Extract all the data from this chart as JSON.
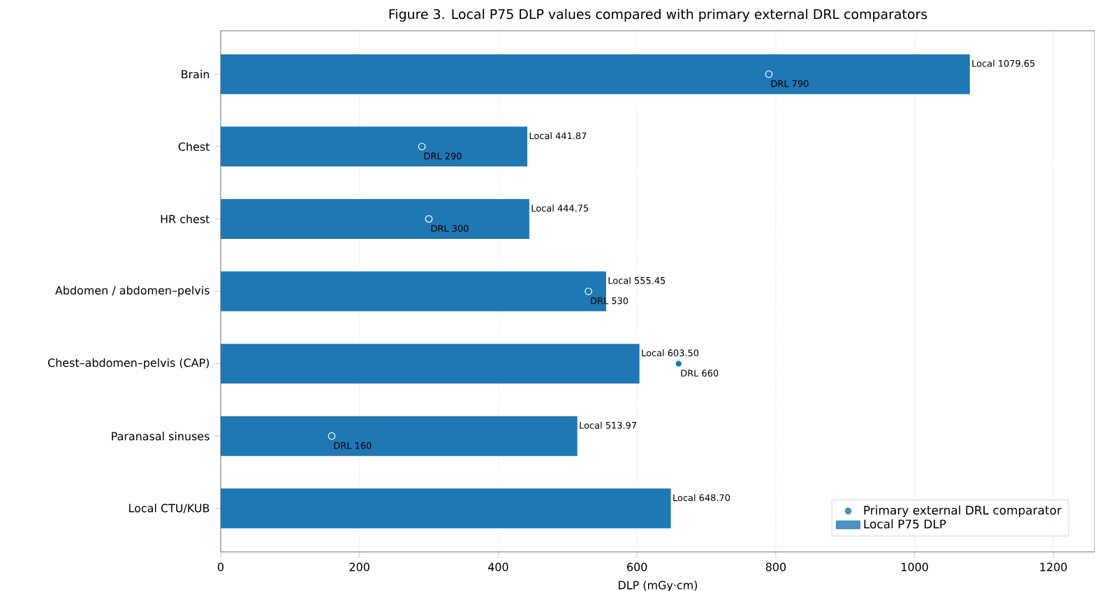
{
  "chart_data": {
    "type": "bar",
    "orientation": "horizontal",
    "title": "Figure 3. Local P75 DLP values compared with primary external DRL comparators",
    "xlabel": "DLP (mGy·cm)",
    "categories": [
      "Brain",
      "Chest",
      "HR chest",
      "Abdomen / abdomen–pelvis",
      "Chest–abdomen–pelvis (CAP)",
      "Paranasal sinuses",
      "Local CTU/KUB"
    ],
    "series": [
      {
        "name": "Primary external DRL comparator",
        "type": "scatter",
        "color": "#1f77b4",
        "values": [
          790,
          290,
          300,
          530,
          660,
          160,
          null
        ],
        "value_labels": [
          "DRL 790",
          "DRL 290",
          "DRL 300",
          "DRL 530",
          "DRL 660",
          "DRL 160",
          null
        ]
      },
      {
        "name": "Local P75 DLP",
        "color": "#1f77b4",
        "values": [
          1079.65,
          441.87,
          444.75,
          555.45,
          603.5,
          513.97,
          648.7
        ],
        "value_labels": [
          "Local 1079.65",
          "Local 441.87",
          "Local 444.75",
          "Local 555.45",
          "Local 603.50",
          "Local 513.97",
          "Local 648.70"
        ]
      }
    ],
    "xlim": [
      0,
      1260
    ],
    "xticks": [
      0,
      200,
      400,
      600,
      800,
      1000,
      1200
    ],
    "grid": "x",
    "legend": "bottom right"
  }
}
